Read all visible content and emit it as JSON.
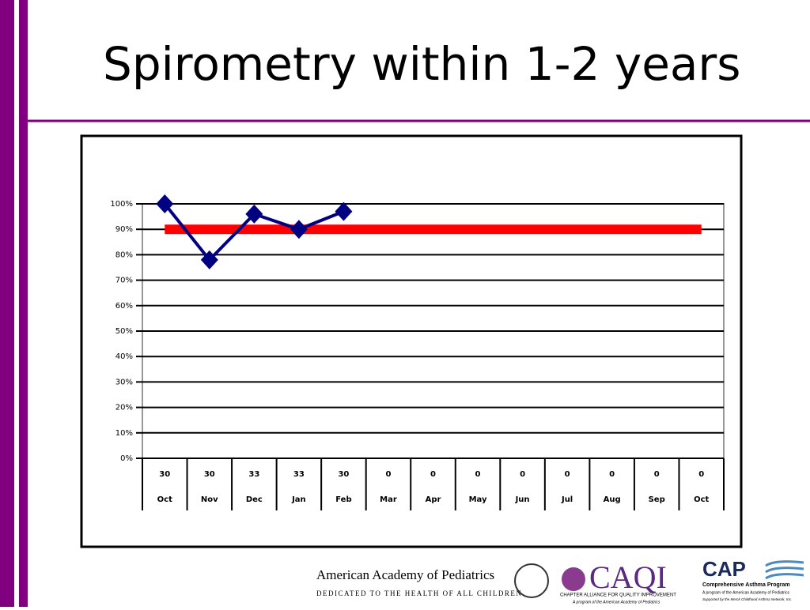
{
  "title": "Spirometry within 1-2 years",
  "chart_data": {
    "type": "line",
    "categories": [
      "Oct",
      "Nov",
      "Dec",
      "Jan",
      "Feb",
      "Mar",
      "Apr",
      "May",
      "Jun",
      "Jul",
      "Aug",
      "Sep",
      "Oct"
    ],
    "n": [
      "30",
      "30",
      "33",
      "33",
      "30",
      "0",
      "0",
      "0",
      "0",
      "0",
      "0",
      "0",
      "0"
    ],
    "series": [
      {
        "color": "#000080",
        "values": [
          100,
          78,
          96,
          90,
          97,
          null,
          null,
          null,
          null,
          null,
          null,
          null,
          null
        ]
      },
      {
        "color": "#ff0000",
        "values": [
          90,
          90,
          90,
          90,
          90,
          90,
          90,
          90,
          90,
          90,
          90,
          90,
          90
        ]
      }
    ],
    "ylim": [
      0,
      100
    ],
    "yticks": [
      {
        "value": 0,
        "label": "0%"
      },
      {
        "value": 10,
        "label": "10%"
      },
      {
        "value": 20,
        "label": "20%"
      },
      {
        "value": 30,
        "label": "30%"
      },
      {
        "value": 40,
        "label": "40%"
      },
      {
        "value": 50,
        "label": "50%"
      },
      {
        "value": 60,
        "label": "60%"
      },
      {
        "value": 70,
        "label": "70%"
      },
      {
        "value": 80,
        "label": "80%"
      },
      {
        "value": 90,
        "label": "90%"
      },
      {
        "value": 100,
        "label": "100%"
      }
    ],
    "grid": true
  },
  "footer": {
    "aap": "American Academy of Pediatrics",
    "aap_tagline": "DEDICATED TO THE HEALTH OF ALL CHILDREN",
    "caqi": "CAQI",
    "caqi_sub": "CHAPTER ALLIANCE FOR QUALITY IMPROVEMENT",
    "caqi_note": "A program of the American Academy of Pediatrics",
    "cap": "CAP",
    "cap_sub": "Comprehensive Asthma Program",
    "cap_note": "A program of the American Academy of Pediatrics",
    "cap_support": "Supported by the Merck Childhood Asthma Network, Inc."
  }
}
